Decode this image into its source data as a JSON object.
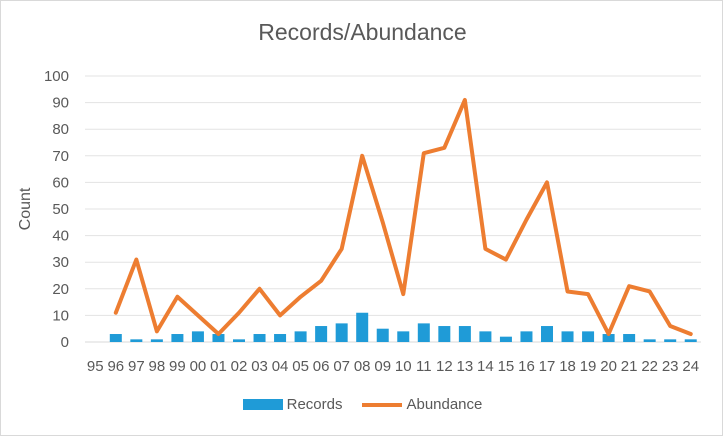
{
  "chart_data": {
    "type": "bar",
    "title": "Records/Abundance",
    "xlabel": "",
    "ylabel": "Count",
    "ylim": [
      0,
      100
    ],
    "yticks": [
      0,
      10,
      20,
      30,
      40,
      50,
      60,
      70,
      80,
      90,
      100
    ],
    "grid": true,
    "legend_position": "bottom",
    "categories": [
      "95",
      "96",
      "97",
      "98",
      "99",
      "00",
      "01",
      "02",
      "03",
      "04",
      "05",
      "06",
      "07",
      "08",
      "09",
      "10",
      "11",
      "12",
      "13",
      "14",
      "15",
      "16",
      "17",
      "18",
      "19",
      "20",
      "21",
      "22",
      "23",
      "24"
    ],
    "series": [
      {
        "name": "Records",
        "type": "bar",
        "color": "#1f9bd7",
        "values": [
          0,
          3,
          1,
          1,
          3,
          4,
          3,
          1,
          3,
          3,
          4,
          6,
          7,
          11,
          5,
          4,
          7,
          6,
          6,
          4,
          2,
          4,
          6,
          4,
          4,
          3,
          3,
          1,
          1,
          1
        ]
      },
      {
        "name": "Abundance",
        "type": "line",
        "color": "#ed7d31",
        "values": [
          null,
          11,
          31,
          4,
          17,
          10,
          3,
          11,
          20,
          10,
          17,
          23,
          35,
          70,
          45,
          18,
          71,
          73,
          91,
          35,
          31,
          46,
          60,
          19,
          18,
          3,
          21,
          19,
          6,
          3
        ]
      }
    ]
  }
}
